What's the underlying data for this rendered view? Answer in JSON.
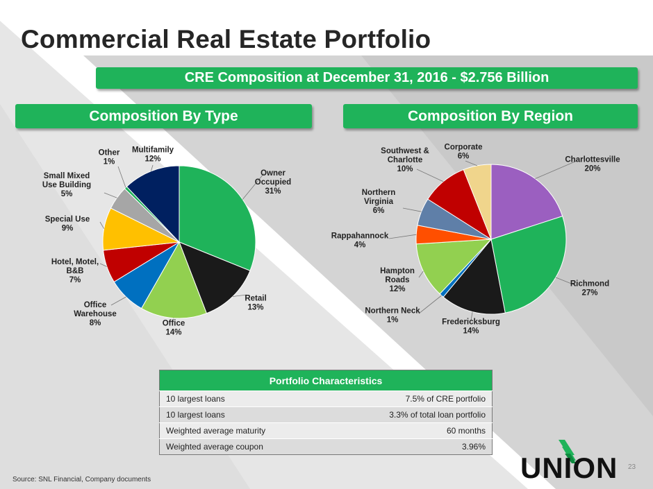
{
  "title": "Commercial Real Estate Portfolio",
  "banner_main": "CRE Composition at December 31, 2016 - $2.756 Billion",
  "banner_left": "Composition By Type",
  "banner_right": "Composition By Region",
  "colors": {
    "banner_green": "#1fb35a",
    "title": "#262626"
  },
  "chart_data": [
    {
      "type": "pie",
      "title": "Composition By Type",
      "slices": [
        {
          "label": [
            "Owner",
            "Occupied"
          ],
          "pct": "31%",
          "value": 31,
          "color": "#1fb35a"
        },
        {
          "label": [
            "Retail"
          ],
          "pct": "13%",
          "value": 13,
          "color": "#1a1a1a"
        },
        {
          "label": [
            "Office"
          ],
          "pct": "14%",
          "value": 14,
          "color": "#92d050"
        },
        {
          "label": [
            "Office",
            "Warehouse"
          ],
          "pct": "8%",
          "value": 8,
          "color": "#0070c0"
        },
        {
          "label": [
            "Hotel, Motel,",
            "B&B"
          ],
          "pct": "7%",
          "value": 7,
          "color": "#c00000"
        },
        {
          "label": [
            "Special Use"
          ],
          "pct": "9%",
          "value": 9,
          "color": "#ffc000"
        },
        {
          "label": [
            "Small Mixed",
            "Use Building"
          ],
          "pct": "5%",
          "value": 5,
          "color": "#a6a6a6"
        },
        {
          "label": [
            "Other"
          ],
          "pct": "1%",
          "value": 0.6,
          "color": "#1fb35a"
        },
        {
          "label": [
            "Multifamily"
          ],
          "pct": "12%",
          "value": 12,
          "color": "#002060"
        }
      ]
    },
    {
      "type": "pie",
      "title": "Composition By Region",
      "slices": [
        {
          "label": [
            "Charlottesville"
          ],
          "pct": "20%",
          "value": 20,
          "color": "#9b5fc0"
        },
        {
          "label": [
            "Richmond"
          ],
          "pct": "27%",
          "value": 27,
          "color": "#1fb35a"
        },
        {
          "label": [
            "Fredericksburg"
          ],
          "pct": "14%",
          "value": 14,
          "color": "#1a1a1a"
        },
        {
          "label": [
            "Northern Neck"
          ],
          "pct": "1%",
          "value": 1,
          "color": "#0070c0"
        },
        {
          "label": [
            "Hampton",
            "Roads"
          ],
          "pct": "12%",
          "value": 12,
          "color": "#92d050"
        },
        {
          "label": [
            "Rappahannock"
          ],
          "pct": "4%",
          "value": 4,
          "color": "#ff4f00"
        },
        {
          "label": [
            "Northern",
            "Virginia"
          ],
          "pct": "6%",
          "value": 6,
          "color": "#5f7fa8"
        },
        {
          "label": [
            "Southwest &",
            "Charlotte"
          ],
          "pct": "10%",
          "value": 10,
          "color": "#c00000"
        },
        {
          "label": [
            "Corporate"
          ],
          "pct": "6%",
          "value": 6,
          "color": "#f0d58c"
        }
      ]
    }
  ],
  "table": {
    "header": "Portfolio Characteristics",
    "rows": [
      {
        "label": "10 largest loans",
        "value": "7.5% of CRE portfolio"
      },
      {
        "label": "10 largest loans",
        "value": "3.3% of total loan portfolio"
      },
      {
        "label": "Weighted average maturity",
        "value": "60 months"
      },
      {
        "label": "Weighted average coupon",
        "value": "3.96%"
      }
    ]
  },
  "source": "Source: SNL Financial, Company documents",
  "page_number": "23",
  "logo_text": "UNION"
}
